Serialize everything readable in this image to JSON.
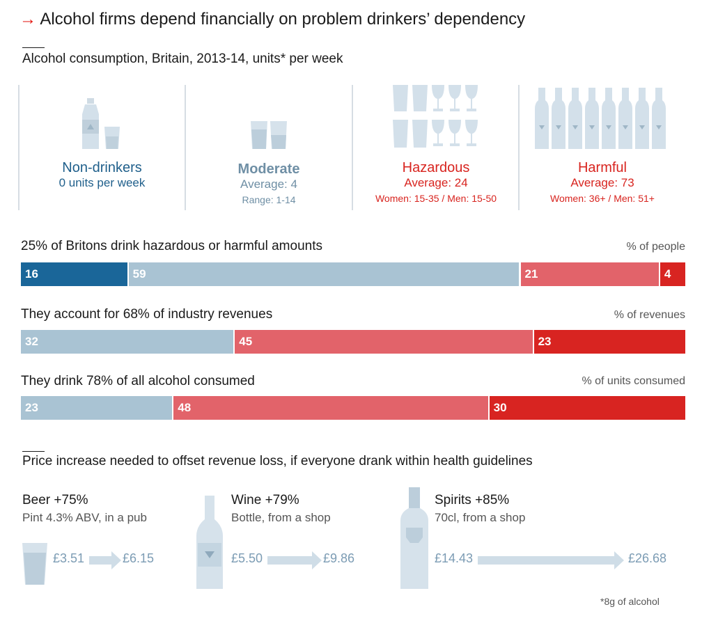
{
  "header": {
    "title": "Alcohol firms depend financially on problem drinkers’ dependency",
    "subtitle": "Alcohol consumption, Britain, 2013-14, units* per week"
  },
  "categories": [
    {
      "name": "Non-drinkers",
      "line1": "0 units per week",
      "line2": "",
      "color": "#1f5f8b"
    },
    {
      "name": "Moderate",
      "line1": "Average: 4",
      "line2": "Range: 1-14",
      "color": "#6f8fa5"
    },
    {
      "name": "Hazardous",
      "line1": "Average: 24",
      "line2": "Women: 15-35 / Men: 15-50",
      "color": "#d8241f"
    },
    {
      "name": "Harmful",
      "line1": "Average: 73",
      "line2": "Women: 36+ / Men: 51+",
      "color": "#d8241f"
    }
  ],
  "chart_data": {
    "type": "bar",
    "orientation": "horizontal-stacked",
    "series_colors": [
      "#1a6699",
      "#a9c3d3",
      "#e2636a",
      "#d82421"
    ],
    "bars": [
      {
        "title": "25% of Britons drink hazardous or harmful amounts",
        "unit": "% of people",
        "values": [
          16,
          59,
          21,
          4
        ],
        "labels": [
          "16",
          "59",
          "21",
          "4"
        ]
      },
      {
        "title": "They account for 68% of industry revenues",
        "unit": "% of revenues",
        "values": [
          0,
          32,
          45,
          23
        ],
        "labels": [
          "",
          "32",
          "45",
          "23"
        ]
      },
      {
        "title": "They drink 78% of all alcohol consumed",
        "unit": "% of units consumed",
        "values": [
          0,
          23,
          48,
          30
        ],
        "labels": [
          "",
          "23",
          "48",
          "30"
        ]
      }
    ]
  },
  "price_section": {
    "subtitle": "Price increase needed to offset revenue loss, if everyone drank within health guidelines",
    "items": [
      {
        "name": "Beer +75%",
        "desc": "Pint 4.3% ABV, in a pub",
        "from": "£3.51",
        "to": "£6.15"
      },
      {
        "name": "Wine +79%",
        "desc": "Bottle, from a shop",
        "from": "£5.50",
        "to": "£9.86"
      },
      {
        "name": "Spirits +85%",
        "desc": "70cl, from a shop",
        "from": "£14.43",
        "to": "£26.68"
      }
    ]
  },
  "footnote": "*8g of alcohol"
}
